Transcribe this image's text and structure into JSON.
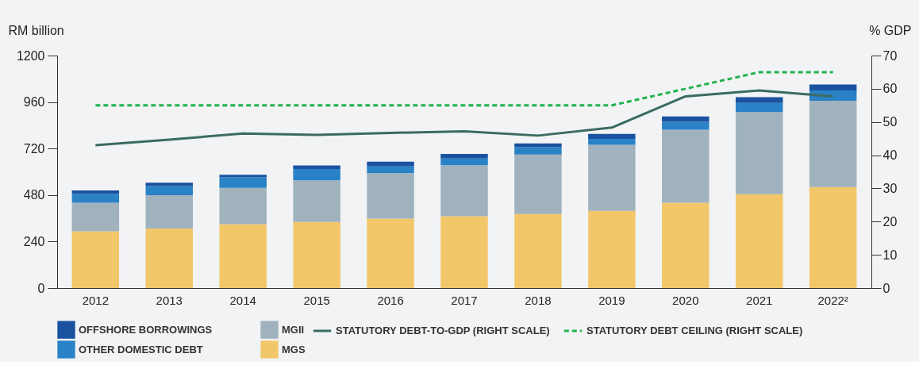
{
  "chart_data": {
    "type": "bar",
    "stacked": true,
    "ylabel": "RM billion",
    "y2label": "% GDP",
    "categories": [
      "2012",
      "2013",
      "2014",
      "2015",
      "2016",
      "2017",
      "2018",
      "2019",
      "2020",
      "2021",
      "2022²"
    ],
    "ylim": [
      0,
      1200
    ],
    "yticks": [
      0,
      240,
      480,
      720,
      960,
      {
        "value": 1200,
        "label": "1200"
      }
    ],
    "y2lim": [
      0,
      70
    ],
    "y2ticks": [
      0,
      10,
      20,
      30,
      40,
      50,
      60,
      70
    ],
    "grid": false,
    "legend": "bottom",
    "marker": "none",
    "series": [
      {
        "name": "MGS",
        "color": "#f2c76a",
        "values": [
          293,
          307,
          330,
          341,
          358,
          371,
          382,
          398,
          440,
          484,
          521
        ]
      },
      {
        "name": "MGII",
        "color": "#a0b2be",
        "values": [
          147,
          172,
          187,
          215,
          236,
          263,
          307,
          341,
          377,
          424,
          446
        ]
      },
      {
        "name": "OTHER DOMESTIC DEBT",
        "color": "#2a82c6",
        "values": [
          46,
          47,
          54,
          58,
          34,
          35,
          39,
          31,
          41,
          47,
          53
        ]
      },
      {
        "name": "OFFSHORE BORROWINGS",
        "color": "#1a52a0",
        "values": [
          18,
          18,
          14,
          19,
          24,
          23,
          18,
          26,
          28,
          30,
          31
        ]
      },
      {
        "name": "STATUTORY DEBT-TO-GDP (RIGHT SCALE)",
        "type": "line",
        "axis": "y2",
        "line_style": "solid",
        "color": "#3a6b62",
        "values": [
          43.0,
          44.7,
          46.5,
          46.1,
          46.7,
          47.2,
          45.9,
          48.3,
          57.7,
          59.5,
          57.7
        ]
      },
      {
        "name": "STATUTORY DEBT CEILING (RIGHT SCALE)",
        "type": "line",
        "axis": "y2",
        "line_style": "dashed",
        "color": "#22b24c",
        "values": [
          55,
          55,
          55,
          55,
          55,
          55,
          55,
          55,
          60,
          65,
          65
        ]
      }
    ]
  }
}
